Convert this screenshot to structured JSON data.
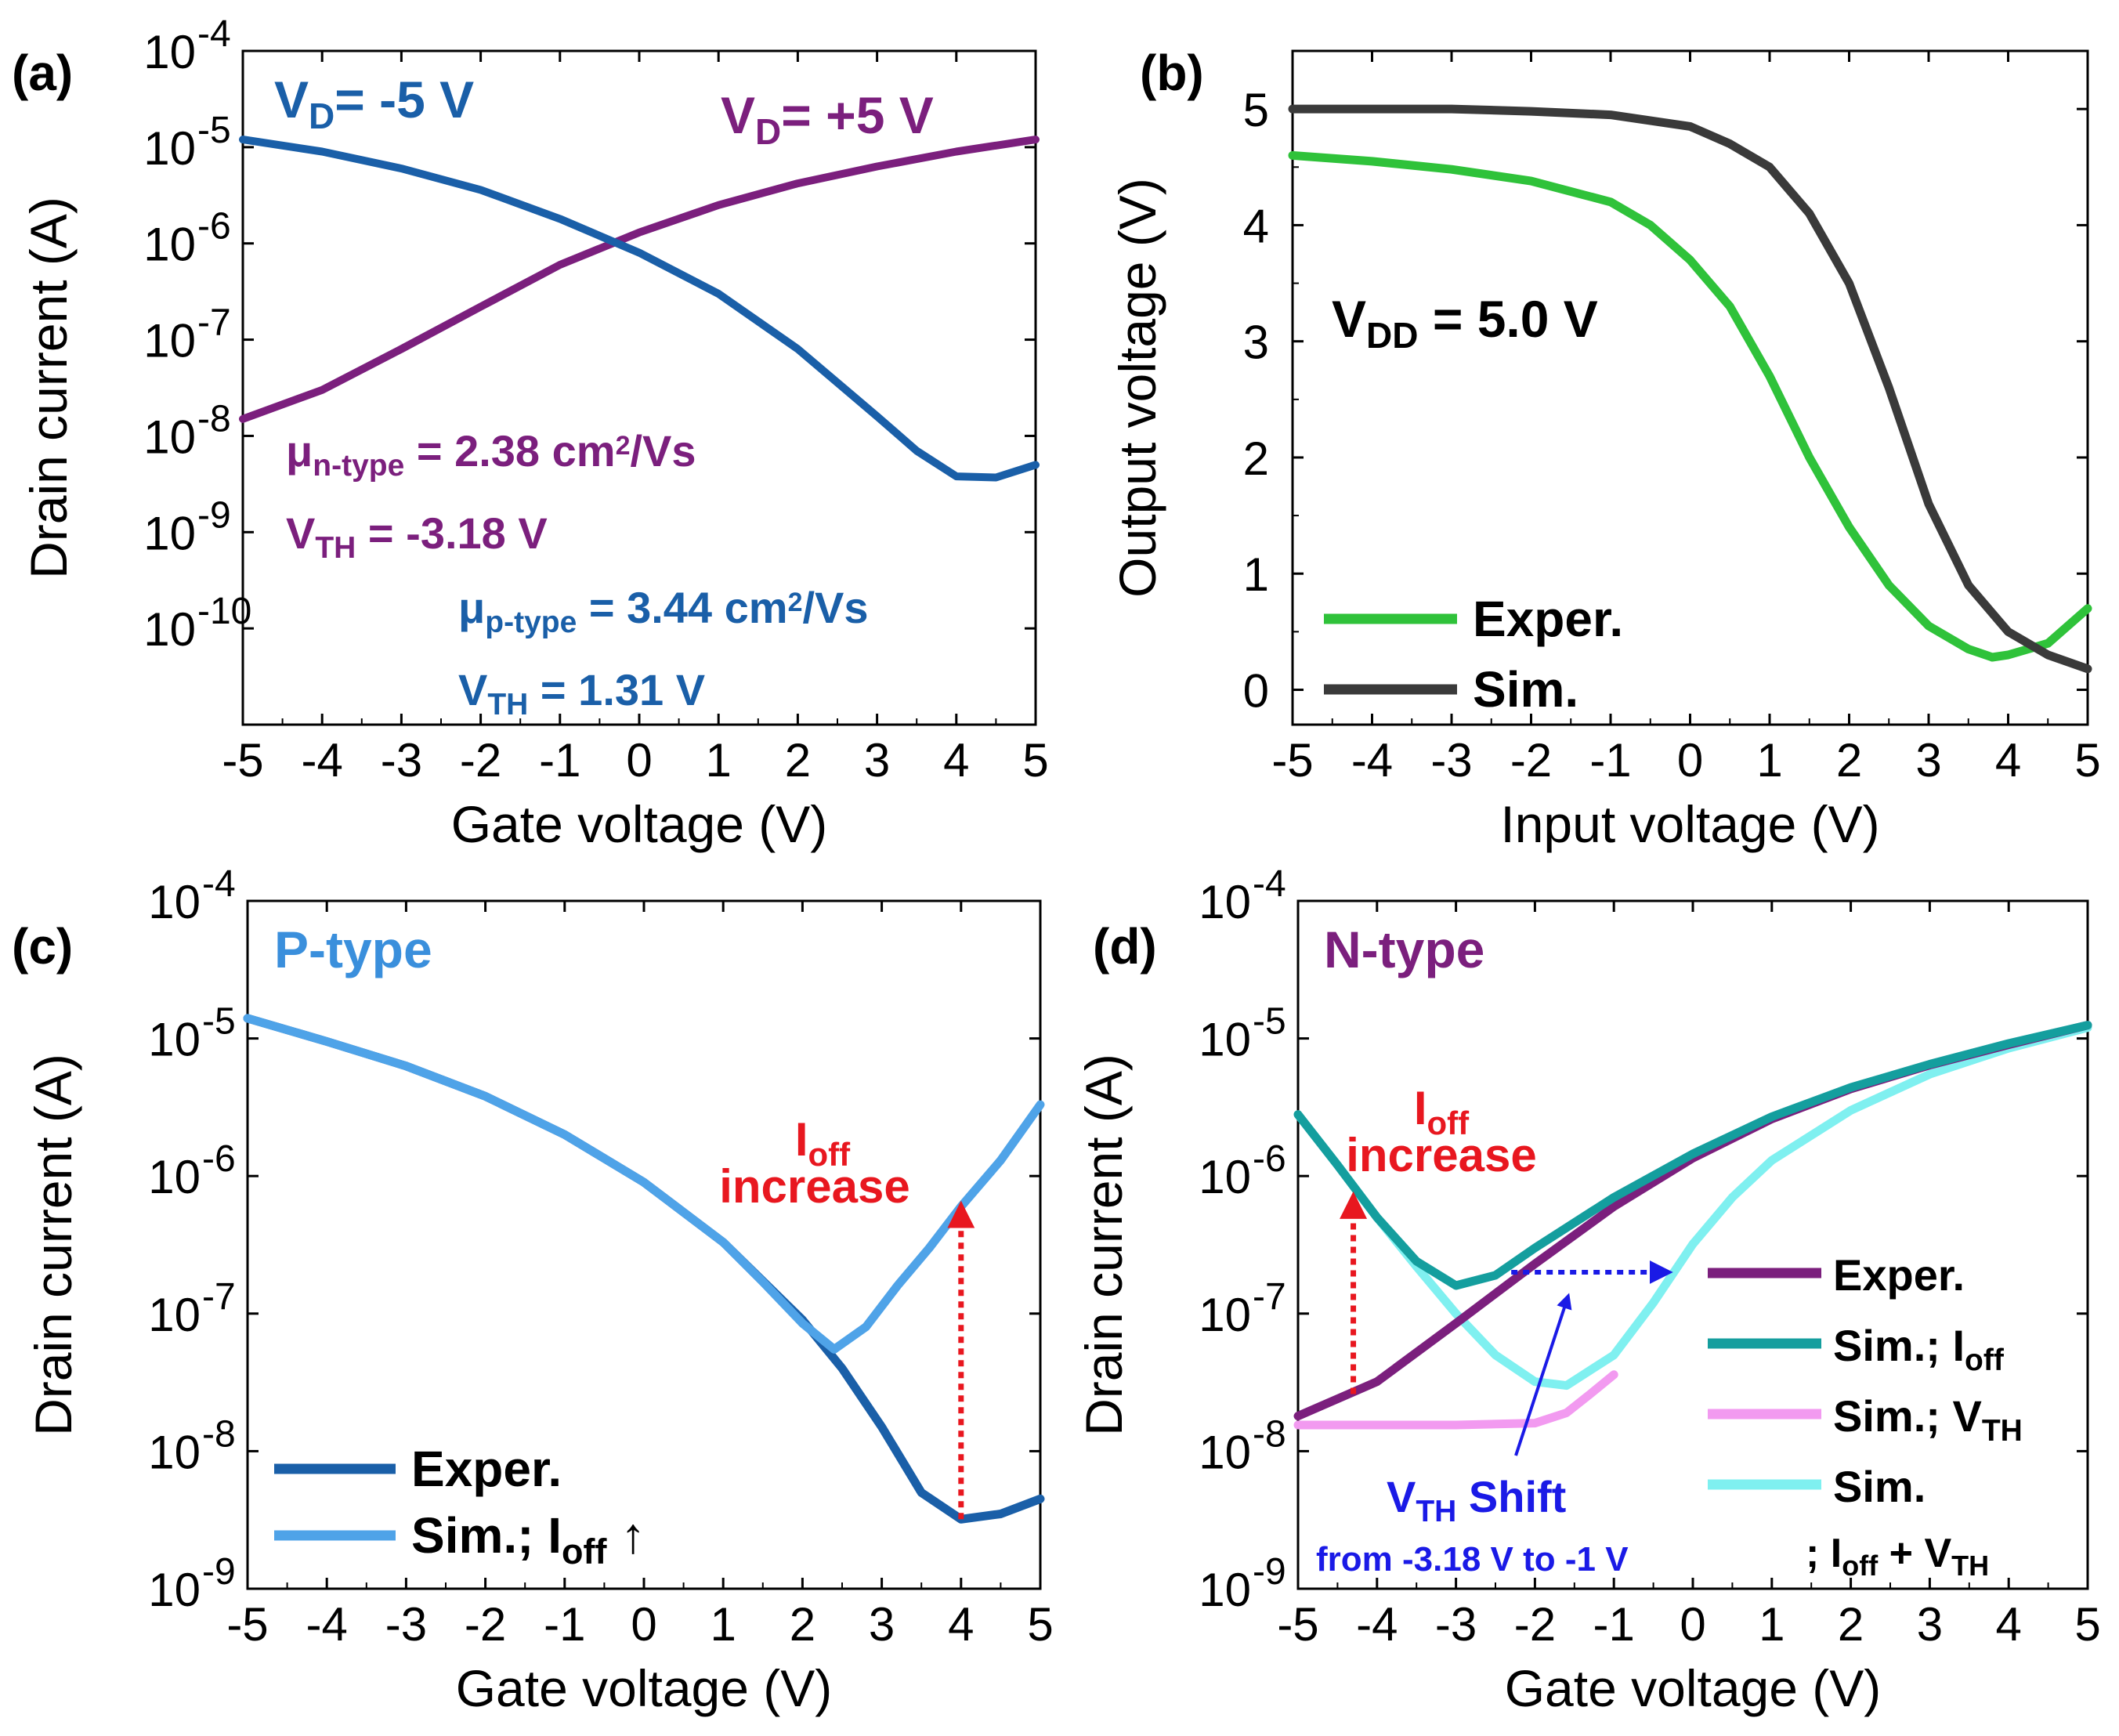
{
  "colors": {
    "p_blue": "#1a5fa8",
    "n_purple": "#7b1f7d",
    "sim_light_blue": "#4fa3e8",
    "exp_dark_blue": "#1a5fa8",
    "green": "#2fc23a",
    "dark_gray": "#3a3a3a",
    "teal": "#149e9e",
    "pink": "#f29af0",
    "cyan": "#7ff0f0",
    "red": "#e8171f",
    "shift_blue": "#1a1ae6",
    "p_label_blue": "#3a8fdc"
  },
  "chart_data": [
    {
      "id": "a",
      "panel_label": "(a)",
      "type": "line",
      "yscale": "log",
      "xlabel": "Gate voltage (V)",
      "ylabel": "Drain current (A)",
      "xlim": [
        -5,
        5
      ],
      "ylim_exp": [
        -11,
        -4
      ],
      "xticks": [
        "-5",
        "-4",
        "-3",
        "-2",
        "-1",
        "0",
        "1",
        "2",
        "3",
        "4",
        "5"
      ],
      "ytick_exps": [
        "-10",
        "-9",
        "-8",
        "-7",
        "-6",
        "-5",
        "-4"
      ],
      "series": [
        {
          "name": "V_D = -5 V",
          "color": "#1a5fa8",
          "x": [
            -5,
            -4,
            -3,
            -2,
            -1,
            0,
            1,
            2,
            3,
            3.5,
            4,
            4.5,
            5
          ],
          "y": [
            1.2e-05,
            9e-06,
            6e-06,
            3.6e-06,
            1.8e-06,
            8e-07,
            3e-07,
            8e-08,
            1.6e-08,
            7e-09,
            3.8e-09,
            3.7e-09,
            5e-09
          ]
        },
        {
          "name": "V_D = +5 V",
          "color": "#7b1f7d",
          "x": [
            -5,
            -4,
            -3,
            -2,
            -1,
            0,
            1,
            2,
            3,
            4,
            5
          ],
          "y": [
            1.5e-08,
            3e-08,
            8e-08,
            2.2e-07,
            6e-07,
            1.3e-06,
            2.5e-06,
            4.2e-06,
            6.3e-06,
            9e-06,
            1.2e-05
          ]
        }
      ],
      "annotations": {
        "vd_neg": {
          "main": "V",
          "sub": "D",
          "rest": "= -5 V"
        },
        "vd_pos": {
          "main": "V",
          "sub": "D",
          "rest": "= +5 V"
        },
        "mu_n": {
          "main": "μ",
          "sub": "n-type",
          "rest": " = 2.38 cm",
          "sup": "2",
          "tail": "/Vs"
        },
        "vth_n": {
          "main": "V",
          "sub": "TH",
          "rest": " = -3.18 V"
        },
        "mu_p": {
          "main": "μ",
          "sub": "p-type",
          "rest": " = 3.44 cm",
          "sup": "2",
          "tail": "/Vs"
        },
        "vth_p": {
          "main": "V",
          "sub": "TH",
          "rest": " = 1.31 V"
        }
      }
    },
    {
      "id": "b",
      "panel_label": "(b)",
      "type": "line",
      "yscale": "linear",
      "xlabel": "Input voltage (V)",
      "ylabel": "Output voltage (V)",
      "xlim": [
        -5,
        5
      ],
      "ylim": [
        -0.3,
        5.5
      ],
      "xticks": [
        "-5",
        "-4",
        "-3",
        "-2",
        "-1",
        "0",
        "1",
        "2",
        "3",
        "4",
        "5"
      ],
      "yticks": [
        "0",
        "1",
        "2",
        "3",
        "4",
        "5"
      ],
      "series": [
        {
          "name": "Exper.",
          "color": "#2fc23a",
          "x": [
            -5,
            -4,
            -3,
            -2,
            -1,
            -0.5,
            0,
            0.5,
            1,
            1.5,
            2,
            2.5,
            3,
            3.5,
            3.8,
            4,
            4.5,
            5
          ],
          "y": [
            4.6,
            4.55,
            4.48,
            4.38,
            4.2,
            4.0,
            3.7,
            3.3,
            2.7,
            2.0,
            1.4,
            0.9,
            0.55,
            0.35,
            0.28,
            0.3,
            0.4,
            0.7
          ]
        },
        {
          "name": "Sim.",
          "color": "#3a3a3a",
          "x": [
            -5,
            -4,
            -3,
            -2,
            -1,
            0,
            0.5,
            1,
            1.5,
            2,
            2.5,
            3,
            3.5,
            4,
            4.5,
            5
          ],
          "y": [
            5.0,
            5.0,
            5.0,
            4.98,
            4.95,
            4.85,
            4.7,
            4.5,
            4.1,
            3.5,
            2.6,
            1.6,
            0.9,
            0.5,
            0.3,
            0.18
          ]
        }
      ],
      "annotations": {
        "vdd": {
          "main": "V",
          "sub": "DD",
          "rest": " = 5.0 V"
        }
      },
      "legend": [
        "Exper.",
        "Sim."
      ]
    },
    {
      "id": "c",
      "panel_label": "(c)",
      "type": "line",
      "yscale": "log",
      "xlabel": "Gate voltage (V)",
      "ylabel": "Drain current (A)",
      "xlim": [
        -5,
        5
      ],
      "ylim_exp": [
        -9,
        -4
      ],
      "xticks": [
        "-5",
        "-4",
        "-3",
        "-2",
        "-1",
        "0",
        "1",
        "2",
        "3",
        "4",
        "5"
      ],
      "ytick_exps": [
        "-9",
        "-8",
        "-7",
        "-6",
        "-5",
        "-4"
      ],
      "title_text": "P-type",
      "series": [
        {
          "name": "Exper.",
          "color": "#1a5fa8",
          "x": [
            -5,
            -4,
            -3,
            -2,
            -1,
            0,
            1,
            2,
            2.5,
            3,
            3.5,
            4,
            4.5,
            5
          ],
          "y": [
            1.4e-05,
            9.5e-06,
            6.3e-06,
            3.8e-06,
            2e-06,
            9e-07,
            3.3e-07,
            9e-08,
            4e-08,
            1.5e-08,
            5e-09,
            3.2e-09,
            3.5e-09,
            4.5e-09
          ]
        },
        {
          "name": "Sim.; I_off ↑",
          "color": "#4fa3e8",
          "x": [
            -5,
            -4,
            -3,
            -2,
            -1,
            0,
            1,
            1.5,
            2,
            2.4,
            2.8,
            3.2,
            3.6,
            4,
            4.5,
            5
          ],
          "y": [
            1.4e-05,
            9.5e-06,
            6.3e-06,
            3.8e-06,
            2e-06,
            9e-07,
            3.3e-07,
            1.7e-07,
            8.5e-08,
            5.5e-08,
            8e-08,
            1.6e-07,
            3e-07,
            6e-07,
            1.3e-06,
            3.3e-06
          ]
        }
      ],
      "annotations": {
        "ioff_increase_1": {
          "main": "I",
          "sub": "off"
        },
        "ioff_increase_2": "increase",
        "arrow": {
          "x": 4,
          "y_from": 3.2e-09,
          "y_to": 6e-07
        }
      },
      "legend": [
        {
          "label": "Exper."
        },
        {
          "label": "Sim.; I",
          "sub": "off",
          "tail": " ↑"
        }
      ]
    },
    {
      "id": "d",
      "panel_label": "(d)",
      "type": "line",
      "yscale": "log",
      "xlabel": "Gate voltage (V)",
      "ylabel": "Drain current (A)",
      "xlim": [
        -5,
        5
      ],
      "ylim_exp": [
        -9,
        -4
      ],
      "xticks": [
        "-5",
        "-4",
        "-3",
        "-2",
        "-1",
        "0",
        "1",
        "2",
        "3",
        "4",
        "5"
      ],
      "ytick_exps": [
        "-9",
        "-8",
        "-7",
        "-6",
        "-5",
        "-4"
      ],
      "title_text": "N-type",
      "series": [
        {
          "name": "Exper.",
          "color": "#7b1f7d",
          "x": [
            -5,
            -4,
            -3,
            -2,
            -1,
            0,
            1,
            2,
            3,
            4,
            5
          ],
          "y": [
            1.8e-08,
            3.2e-08,
            8.5e-08,
            2.3e-07,
            6e-07,
            1.35e-06,
            2.6e-06,
            4.3e-06,
            6.4e-06,
            9e-06,
            1.25e-05
          ]
        },
        {
          "name": "Sim.; I_off",
          "color": "#149e9e",
          "x": [
            -5,
            -4.5,
            -4,
            -3.5,
            -3,
            -2.5,
            -2,
            -1,
            0,
            1,
            2,
            3,
            4,
            5
          ],
          "y": [
            2.8e-06,
            1.2e-06,
            5e-07,
            2.4e-07,
            1.6e-07,
            1.9e-07,
            3e-07,
            7e-07,
            1.45e-06,
            2.7e-06,
            4.4e-06,
            6.5e-06,
            9.2e-06,
            1.25e-05
          ]
        },
        {
          "name": "Sim.; V_TH",
          "color": "#f29af0",
          "x": [
            -5,
            -4,
            -3,
            -2,
            -1.6,
            -1.3,
            -1
          ],
          "y": [
            1.55e-08,
            1.55e-08,
            1.55e-08,
            1.6e-08,
            1.9e-08,
            2.6e-08,
            3.6e-08
          ]
        },
        {
          "name": "Sim.",
          "color": "#7ff0f0",
          "x": [
            -5,
            -4.5,
            -4,
            -3.5,
            -3,
            -2.5,
            -2,
            -1.6,
            -1,
            -0.5,
            0,
            0.5,
            1,
            2,
            3,
            4,
            5
          ],
          "y": [
            2.8e-06,
            1.2e-06,
            5e-07,
            2.2e-07,
            1e-07,
            5e-08,
            3.2e-08,
            3e-08,
            5e-08,
            1.2e-07,
            3.2e-07,
            7e-07,
            1.3e-06,
            3e-06,
            5.5e-06,
            8.5e-06,
            1.2e-05
          ]
        }
      ],
      "annotations": {
        "ioff_increase_1": {
          "main": "I",
          "sub": "off"
        },
        "ioff_increase_2": "increase",
        "red_arrow": {
          "x": -4.3,
          "y_from": 2.6e-08,
          "y_to": 7e-07
        },
        "blue_arrow": {
          "x_from": -2.3,
          "x_to": -0.3,
          "y": 2e-07
        },
        "shift": {
          "main": "V",
          "sub": "TH",
          "rest": " Shift"
        },
        "shift_range": "from -3.18 V to -1 V"
      },
      "legend": [
        {
          "label": "Exper."
        },
        {
          "label": "Sim.; I",
          "sub": "off"
        },
        {
          "label": "Sim.; V",
          "sub": "TH"
        },
        {
          "label": "Sim."
        },
        {
          "label": "; I",
          "sub": "off",
          "tail": " + V",
          "sub2": "TH"
        }
      ]
    }
  ]
}
